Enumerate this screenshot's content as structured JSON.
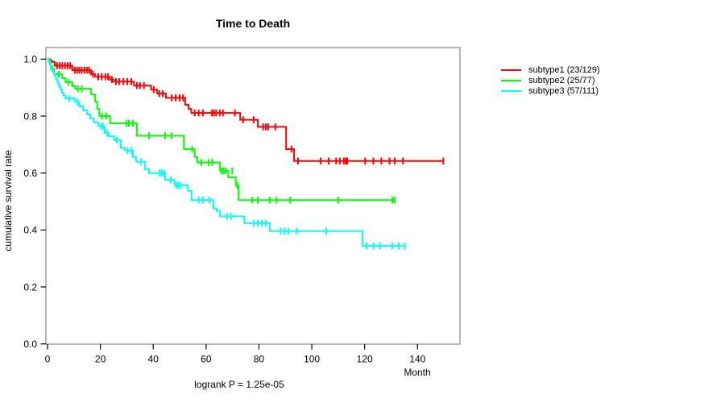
{
  "chart_data": {
    "type": "line",
    "variant": "kaplan-meier-step",
    "title": "Time to Death",
    "xlabel": "Month",
    "ylabel": "cumulative survival rate",
    "annotation": "logrank P = 1.25e-05",
    "x_ticks": [
      0,
      20,
      40,
      60,
      80,
      100,
      120,
      140
    ],
    "y_ticks": [
      0.0,
      0.2,
      0.4,
      0.6,
      0.8,
      1.0
    ],
    "xlim": [
      0,
      156
    ],
    "ylim": [
      0,
      1.04
    ],
    "grid": false,
    "legend_position": "right-outside",
    "box_color": "#878787",
    "axis_color": "#000000",
    "series": [
      {
        "name": "subtype1",
        "legend": "subtype1 (23/129)",
        "events": "23/129",
        "color": "#ff0000",
        "steps": [
          [
            0,
            1.0
          ],
          [
            1.0,
            0.995
          ],
          [
            1.7,
            0.99
          ],
          [
            2.7,
            0.977
          ],
          [
            9.4,
            0.961
          ],
          [
            16.5,
            0.947
          ],
          [
            18,
            0.938
          ],
          [
            23.6,
            0.928
          ],
          [
            25.1,
            0.921
          ],
          [
            32.7,
            0.907
          ],
          [
            39.2,
            0.893
          ],
          [
            41.5,
            0.879
          ],
          [
            44.8,
            0.864
          ],
          [
            52.1,
            0.84
          ],
          [
            53.4,
            0.825
          ],
          [
            54.4,
            0.811
          ],
          [
            72.9,
            0.787
          ],
          [
            79.6,
            0.762
          ],
          [
            90.3,
            0.684
          ],
          [
            93.3,
            0.642
          ],
          [
            150,
            0.642
          ]
        ],
        "censors": [
          [
            3.6,
            0.977
          ],
          [
            4.6,
            0.977
          ],
          [
            5.6,
            0.977
          ],
          [
            6.6,
            0.977
          ],
          [
            7.6,
            0.977
          ],
          [
            8.6,
            0.977
          ],
          [
            10.3,
            0.961
          ],
          [
            11.2,
            0.961
          ],
          [
            12,
            0.961
          ],
          [
            13,
            0.961
          ],
          [
            14,
            0.961
          ],
          [
            15,
            0.961
          ],
          [
            15.8,
            0.961
          ],
          [
            17.2,
            0.947
          ],
          [
            19.2,
            0.938
          ],
          [
            20.5,
            0.938
          ],
          [
            21.9,
            0.938
          ],
          [
            22.9,
            0.938
          ],
          [
            24.4,
            0.928
          ],
          [
            25.9,
            0.921
          ],
          [
            27.1,
            0.921
          ],
          [
            28.7,
            0.921
          ],
          [
            30.2,
            0.921
          ],
          [
            31.7,
            0.921
          ],
          [
            33.8,
            0.907
          ],
          [
            35,
            0.907
          ],
          [
            36.5,
            0.907
          ],
          [
            40.2,
            0.893
          ],
          [
            42.3,
            0.879
          ],
          [
            43.6,
            0.879
          ],
          [
            47,
            0.864
          ],
          [
            48.5,
            0.864
          ],
          [
            50,
            0.864
          ],
          [
            51.3,
            0.864
          ],
          [
            55.7,
            0.811
          ],
          [
            57.2,
            0.811
          ],
          [
            58.8,
            0.811
          ],
          [
            62.2,
            0.811
          ],
          [
            63,
            0.811
          ],
          [
            63.8,
            0.811
          ],
          [
            65.2,
            0.811
          ],
          [
            66.4,
            0.811
          ],
          [
            70.9,
            0.811
          ],
          [
            74,
            0.787
          ],
          [
            78,
            0.787
          ],
          [
            81.6,
            0.762
          ],
          [
            82.6,
            0.762
          ],
          [
            83.5,
            0.762
          ],
          [
            86.2,
            0.762
          ],
          [
            92.3,
            0.684
          ],
          [
            94.8,
            0.642
          ],
          [
            103.4,
            0.642
          ],
          [
            106.4,
            0.642
          ],
          [
            109.2,
            0.642
          ],
          [
            110.6,
            0.642
          ],
          [
            112.1,
            0.642
          ],
          [
            112.8,
            0.642
          ],
          [
            113.4,
            0.642
          ],
          [
            120.2,
            0.642
          ],
          [
            123.3,
            0.642
          ],
          [
            126.3,
            0.642
          ],
          [
            129.4,
            0.642
          ],
          [
            131.4,
            0.642
          ],
          [
            134.5,
            0.642
          ],
          [
            149.8,
            0.642
          ]
        ]
      },
      {
        "name": "subtype2",
        "legend": "subtype2 (25/77)",
        "events": "25/77",
        "color": "#00ff00",
        "steps": [
          [
            0,
            1.0
          ],
          [
            0.8,
            0.985
          ],
          [
            1.3,
            0.966
          ],
          [
            2.5,
            0.947
          ],
          [
            5.6,
            0.933
          ],
          [
            6.8,
            0.919
          ],
          [
            9.4,
            0.905
          ],
          [
            10.5,
            0.896
          ],
          [
            16.5,
            0.876
          ],
          [
            18,
            0.85
          ],
          [
            18.8,
            0.825
          ],
          [
            19.6,
            0.8
          ],
          [
            23.7,
            0.775
          ],
          [
            33.8,
            0.731
          ],
          [
            51.6,
            0.684
          ],
          [
            55.7,
            0.656
          ],
          [
            56.7,
            0.637
          ],
          [
            65.3,
            0.608
          ],
          [
            68.4,
            0.585
          ],
          [
            71.2,
            0.557
          ],
          [
            72.3,
            0.505
          ],
          [
            131.4,
            0.505
          ]
        ],
        "censors": [
          [
            1.9,
            0.966
          ],
          [
            4.3,
            0.947
          ],
          [
            7.8,
            0.919
          ],
          [
            11.5,
            0.896
          ],
          [
            13,
            0.896
          ],
          [
            20.6,
            0.8
          ],
          [
            22.2,
            0.8
          ],
          [
            29.8,
            0.775
          ],
          [
            30.8,
            0.775
          ],
          [
            32.3,
            0.775
          ],
          [
            38.4,
            0.731
          ],
          [
            44.5,
            0.731
          ],
          [
            47,
            0.731
          ],
          [
            54.7,
            0.684
          ],
          [
            58.2,
            0.637
          ],
          [
            61,
            0.637
          ],
          [
            62.3,
            0.637
          ],
          [
            65.8,
            0.608
          ],
          [
            66.6,
            0.608
          ],
          [
            67.4,
            0.608
          ],
          [
            69.9,
            0.608
          ],
          [
            71.8,
            0.557
          ],
          [
            77.5,
            0.505
          ],
          [
            79.6,
            0.505
          ],
          [
            84.1,
            0.505
          ],
          [
            86.7,
            0.505
          ],
          [
            91.8,
            0.505
          ],
          [
            110,
            0.505
          ],
          [
            130.5,
            0.505
          ],
          [
            131.4,
            0.505
          ]
        ]
      },
      {
        "name": "subtype3",
        "legend": "subtype3 (57/111)",
        "events": "57/111",
        "color": "#00ffff",
        "steps": [
          [
            0,
            1.0
          ],
          [
            0.4,
            0.991
          ],
          [
            0.9,
            0.982
          ],
          [
            1.3,
            0.973
          ],
          [
            1.7,
            0.964
          ],
          [
            2.1,
            0.955
          ],
          [
            2.5,
            0.946
          ],
          [
            2.9,
            0.937
          ],
          [
            3.3,
            0.928
          ],
          [
            3.8,
            0.919
          ],
          [
            4.2,
            0.91
          ],
          [
            4.6,
            0.901
          ],
          [
            5.0,
            0.892
          ],
          [
            5.5,
            0.882
          ],
          [
            6.1,
            0.872
          ],
          [
            6.8,
            0.862
          ],
          [
            10.5,
            0.849
          ],
          [
            12,
            0.834
          ],
          [
            13.5,
            0.82
          ],
          [
            15,
            0.806
          ],
          [
            16.2,
            0.792
          ],
          [
            17.5,
            0.778
          ],
          [
            19.3,
            0.764
          ],
          [
            21.6,
            0.74
          ],
          [
            23.2,
            0.729
          ],
          [
            25.2,
            0.716
          ],
          [
            27.7,
            0.688
          ],
          [
            29.3,
            0.679
          ],
          [
            32.3,
            0.656
          ],
          [
            33.5,
            0.64
          ],
          [
            36.9,
            0.613
          ],
          [
            38.4,
            0.6
          ],
          [
            44.5,
            0.576
          ],
          [
            48.1,
            0.557
          ],
          [
            53.1,
            0.538
          ],
          [
            54.5,
            0.505
          ],
          [
            62.8,
            0.476
          ],
          [
            64,
            0.467
          ],
          [
            65.3,
            0.448
          ],
          [
            74.5,
            0.424
          ],
          [
            84.1,
            0.396
          ],
          [
            119.2,
            0.344
          ],
          [
            135.4,
            0.344
          ]
        ],
        "censors": [
          [
            8.3,
            0.862
          ],
          [
            11.4,
            0.849
          ],
          [
            20.3,
            0.764
          ],
          [
            21,
            0.764
          ],
          [
            22.5,
            0.74
          ],
          [
            26.2,
            0.716
          ],
          [
            30.3,
            0.679
          ],
          [
            31.8,
            0.679
          ],
          [
            35.4,
            0.64
          ],
          [
            42.4,
            0.6
          ],
          [
            43.2,
            0.6
          ],
          [
            44,
            0.6
          ],
          [
            46.6,
            0.576
          ],
          [
            48.8,
            0.557
          ],
          [
            49.6,
            0.557
          ],
          [
            50.4,
            0.557
          ],
          [
            57.2,
            0.505
          ],
          [
            58.8,
            0.505
          ],
          [
            61.3,
            0.505
          ],
          [
            67.9,
            0.448
          ],
          [
            69.4,
            0.448
          ],
          [
            78,
            0.424
          ],
          [
            79.6,
            0.424
          ],
          [
            81.1,
            0.424
          ],
          [
            82.6,
            0.424
          ],
          [
            88.2,
            0.396
          ],
          [
            89.7,
            0.396
          ],
          [
            91.2,
            0.396
          ],
          [
            94.3,
            0.396
          ],
          [
            105.5,
            0.396
          ],
          [
            120.7,
            0.344
          ],
          [
            123.3,
            0.344
          ],
          [
            125.8,
            0.344
          ],
          [
            130.4,
            0.344
          ],
          [
            132.9,
            0.344
          ],
          [
            135.2,
            0.344
          ]
        ]
      }
    ]
  }
}
